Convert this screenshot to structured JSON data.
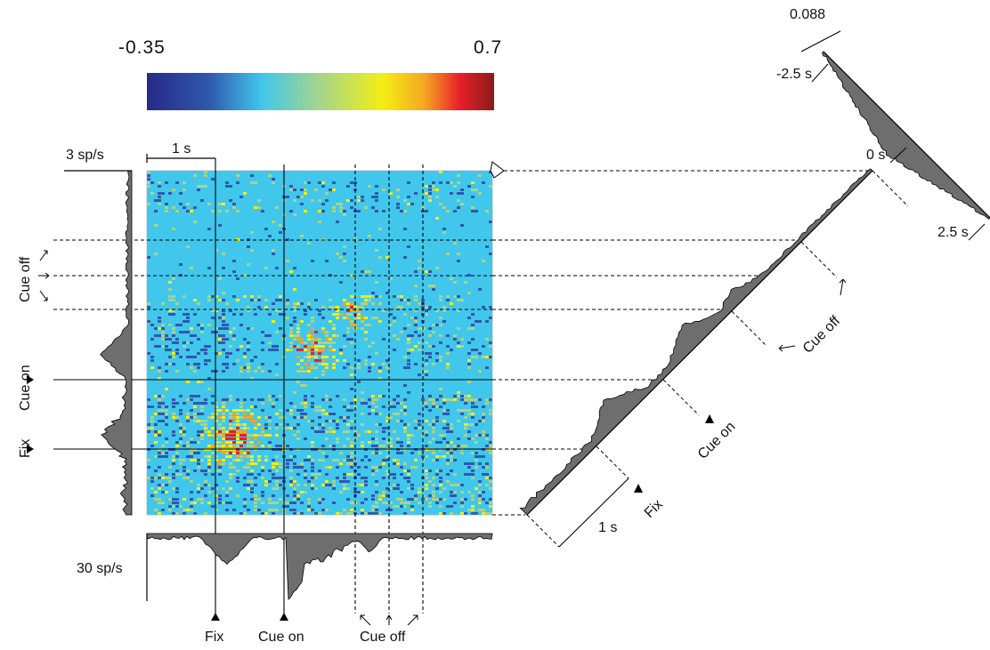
{
  "colorbar": {
    "min_label": "-0.35",
    "max_label": "0.7",
    "stops": [
      "#262a86",
      "#2f59ad",
      "#41c7ec",
      "#a6d58a",
      "#f3ee14",
      "#f5a623",
      "#e8202a",
      "#8b1a1a"
    ]
  },
  "scales": {
    "time_bar_label": "1 s",
    "left_rate_label": "3 sp/s",
    "bottom_rate_label": "30 sp/s",
    "diag_time_bar_label": "1 s",
    "top_right_value": "0.088",
    "lag_labels": [
      "-2.5 s",
      "0 s",
      "2.5 s"
    ]
  },
  "events": {
    "fix": "Fix",
    "cue_on": "Cue on",
    "cue_off": "Cue off"
  },
  "chart_data": {
    "type": "heatmap",
    "title": "",
    "xlabel": "",
    "ylabel": "",
    "color_range": [
      -0.35,
      0.7
    ],
    "time_scale_s": 1,
    "lag_range_s": [
      -2.5,
      2.5
    ],
    "event_markers": [
      "Fix",
      "Cue on",
      "Cue off",
      "Cue off",
      "Cue off"
    ],
    "left_psth_scale": "3 sp/s",
    "bottom_psth_scale": "30 sp/s"
  },
  "colors": {
    "axis": "#000000",
    "psth_fill": "#6e6e6e",
    "heatmap_base": "#41c7ec"
  }
}
